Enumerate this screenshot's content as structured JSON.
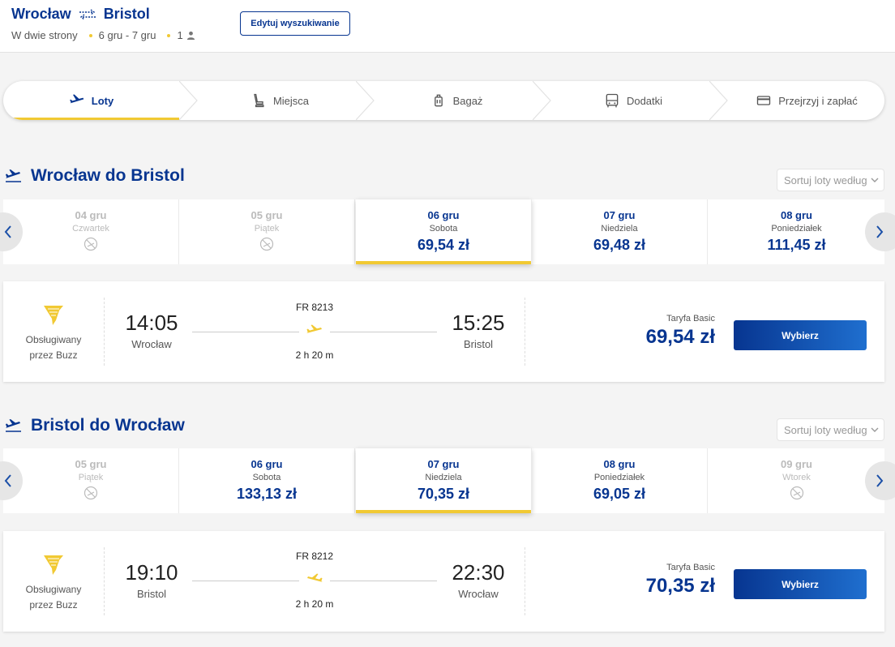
{
  "header": {
    "origin": "Wrocław",
    "destination": "Bristol",
    "trip_type": "W dwie strony",
    "dates": "6 gru - 7 gru",
    "passengers": "1",
    "edit_label": "Edytuj wyszukiwanie"
  },
  "stepper": {
    "steps": [
      {
        "label": "Loty",
        "icon": "plane-icon",
        "active": true
      },
      {
        "label": "Miejsca",
        "icon": "seat-icon",
        "active": false
      },
      {
        "label": "Bagaż",
        "icon": "luggage-icon",
        "active": false
      },
      {
        "label": "Dodatki",
        "icon": "bus-icon",
        "active": false
      },
      {
        "label": "Przejrzyj i zapłać",
        "icon": "card-icon",
        "active": false
      }
    ]
  },
  "outbound": {
    "title": "Wrocław do Bristol",
    "sort_label": "Sortuj loty według",
    "dates": [
      {
        "date": "04 gru",
        "weekday": "Czwartek",
        "price": "",
        "available": false
      },
      {
        "date": "05 gru",
        "weekday": "Piątek",
        "price": "",
        "available": false
      },
      {
        "date": "06 gru",
        "weekday": "Sobota",
        "price": "69,54 zł",
        "available": true,
        "selected": true
      },
      {
        "date": "07 gru",
        "weekday": "Niedziela",
        "price": "69,48 zł",
        "available": true
      },
      {
        "date": "08 gru",
        "weekday": "Poniedziałek",
        "price": "111,45 zł",
        "available": true
      }
    ],
    "flight": {
      "operator": "Obsługiwany przez Buzz",
      "operator_line1": "Obsługiwany",
      "operator_line2": "przez Buzz",
      "flight_number": "FR 8213",
      "dep_time": "14:05",
      "dep_city": "Wrocław",
      "arr_time": "15:25",
      "arr_city": "Bristol",
      "duration": "2 h 20 m",
      "tariff": "Taryfa Basic",
      "price": "69,54 zł",
      "select_label": "Wybierz"
    }
  },
  "inbound": {
    "title": "Bristol do Wrocław",
    "sort_label": "Sortuj loty według",
    "dates": [
      {
        "date": "05 gru",
        "weekday": "Piątek",
        "price": "",
        "available": false
      },
      {
        "date": "06 gru",
        "weekday": "Sobota",
        "price": "133,13 zł",
        "available": true
      },
      {
        "date": "07 gru",
        "weekday": "Niedziela",
        "price": "70,35 zł",
        "available": true,
        "selected": true
      },
      {
        "date": "08 gru",
        "weekday": "Poniedziałek",
        "price": "69,05 zł",
        "available": true
      },
      {
        "date": "09 gru",
        "weekday": "Wtorek",
        "price": "",
        "available": false
      }
    ],
    "flight": {
      "operator_line1": "Obsługiwany",
      "operator_line2": "przez Buzz",
      "flight_number": "FR 8212",
      "dep_time": "19:10",
      "dep_city": "Bristol",
      "arr_time": "22:30",
      "arr_city": "Wrocław",
      "duration": "2 h 20 m",
      "tariff": "Taryfa Basic",
      "price": "70,35 zł",
      "select_label": "Wybierz"
    }
  },
  "colors": {
    "brand_blue": "#073590",
    "accent_yellow": "#f1c933",
    "button_gradient_end": "#1f6fcf"
  }
}
